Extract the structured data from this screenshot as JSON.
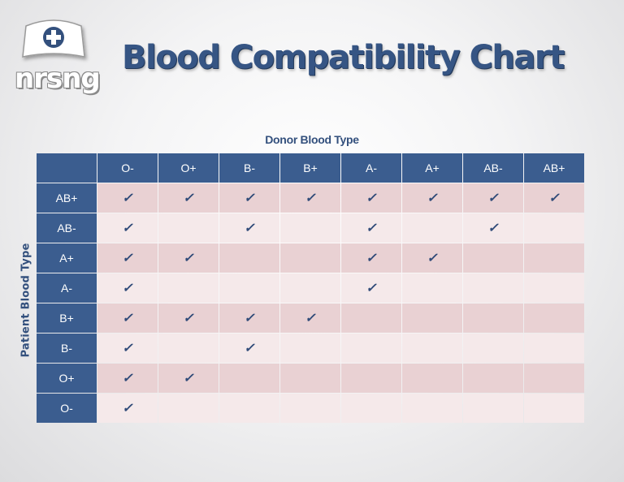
{
  "logo": {
    "text": "nrsng",
    "icon": "nurse-cap-cross-icon"
  },
  "title": "Blood Compatibility Chart",
  "donor_axis_label": "Donor Blood Type",
  "patient_axis_label": "Patient Blood Type",
  "check_symbol": "✓",
  "colors": {
    "header_blue": "#3b5d8f",
    "title_blue": "#365584",
    "row_pink_dark": "#e9d1d3",
    "row_pink_light": "#f5e9ea"
  },
  "chart_data": {
    "type": "table",
    "columns": [
      "O-",
      "O+",
      "B-",
      "B+",
      "A-",
      "A+",
      "AB-",
      "AB+"
    ],
    "rows": [
      {
        "patient": "AB+",
        "compatible": [
          true,
          true,
          true,
          true,
          true,
          true,
          true,
          true
        ]
      },
      {
        "patient": "AB-",
        "compatible": [
          true,
          false,
          true,
          false,
          true,
          false,
          true,
          false
        ]
      },
      {
        "patient": "A+",
        "compatible": [
          true,
          true,
          false,
          false,
          true,
          true,
          false,
          false
        ]
      },
      {
        "patient": "A-",
        "compatible": [
          true,
          false,
          false,
          false,
          true,
          false,
          false,
          false
        ]
      },
      {
        "patient": "B+",
        "compatible": [
          true,
          true,
          true,
          true,
          false,
          false,
          false,
          false
        ]
      },
      {
        "patient": "B-",
        "compatible": [
          true,
          false,
          true,
          false,
          false,
          false,
          false,
          false
        ]
      },
      {
        "patient": "O+",
        "compatible": [
          true,
          true,
          false,
          false,
          false,
          false,
          false,
          false
        ]
      },
      {
        "patient": "O-",
        "compatible": [
          true,
          false,
          false,
          false,
          false,
          false,
          false,
          false
        ]
      }
    ]
  }
}
